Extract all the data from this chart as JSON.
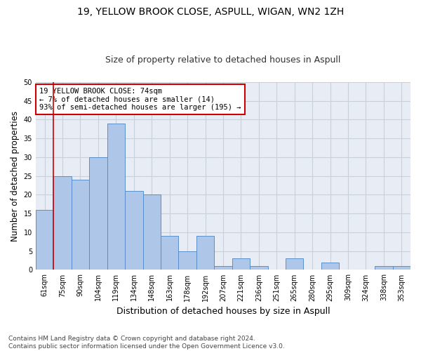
{
  "title": "19, YELLOW BROOK CLOSE, ASPULL, WIGAN, WN2 1ZH",
  "subtitle": "Size of property relative to detached houses in Aspull",
  "xlabel": "Distribution of detached houses by size in Aspull",
  "ylabel": "Number of detached properties",
  "bin_labels": [
    "61sqm",
    "75sqm",
    "90sqm",
    "104sqm",
    "119sqm",
    "134sqm",
    "148sqm",
    "163sqm",
    "178sqm",
    "192sqm",
    "207sqm",
    "221sqm",
    "236sqm",
    "251sqm",
    "265sqm",
    "280sqm",
    "295sqm",
    "309sqm",
    "324sqm",
    "338sqm",
    "353sqm"
  ],
  "bar_heights": [
    16,
    25,
    24,
    30,
    39,
    21,
    20,
    9,
    5,
    9,
    1,
    3,
    1,
    0,
    3,
    0,
    2,
    0,
    0,
    1,
    1
  ],
  "bar_color": "#aec6e8",
  "bar_edge_color": "#5b8fc9",
  "annotation_text": "19 YELLOW BROOK CLOSE: 74sqm\n← 7% of detached houses are smaller (14)\n93% of semi-detached houses are larger (195) →",
  "annotation_box_color": "#ffffff",
  "annotation_box_edge_color": "#cc0000",
  "footnote": "Contains HM Land Registry data © Crown copyright and database right 2024.\nContains public sector information licensed under the Open Government Licence v3.0.",
  "ylim": [
    0,
    50
  ],
  "yticks": [
    0,
    5,
    10,
    15,
    20,
    25,
    30,
    35,
    40,
    45,
    50
  ],
  "grid_color": "#c8d0dc",
  "bg_color": "#e8edf5",
  "title_fontsize": 10,
  "subtitle_fontsize": 9,
  "axis_label_fontsize": 8.5,
  "tick_fontsize": 7,
  "annot_fontsize": 7.5,
  "footnote_fontsize": 6.5
}
